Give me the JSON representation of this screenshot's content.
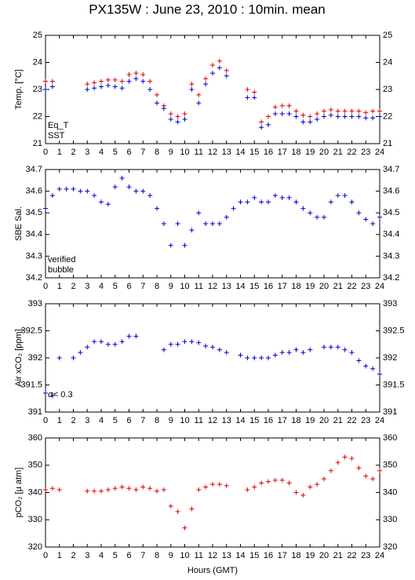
{
  "chart_data": [
    {
      "type": "scatter",
      "title": "PX135W : June 23, 2010 : 10min. mean",
      "ylabel": "Temp. [°C]",
      "x": [
        0,
        0.5,
        1,
        1.5,
        2,
        2.5,
        3,
        3.5,
        4,
        4.5,
        5,
        5.5,
        6,
        6.5,
        7,
        7.5,
        8,
        8.5,
        9,
        9.5,
        10,
        10.5,
        11,
        11.5,
        12,
        12.5,
        13,
        13.5,
        14,
        14.5,
        15,
        15.5,
        16,
        16.5,
        17,
        17.5,
        18,
        18.5,
        19,
        19.5,
        20,
        20.5,
        21,
        21.5,
        22,
        22.5,
        23,
        23.5,
        24
      ],
      "series": [
        {
          "name": "Eq_T",
          "color": "#e00000",
          "values": [
            23.3,
            23.3,
            null,
            null,
            null,
            null,
            23.2,
            23.25,
            23.3,
            23.35,
            23.35,
            23.3,
            23.55,
            23.6,
            23.55,
            23.3,
            22.8,
            22.4,
            22.1,
            22.0,
            22.1,
            23.2,
            22.8,
            23.4,
            23.9,
            24.05,
            23.7,
            null,
            null,
            23.0,
            22.9,
            21.8,
            22.0,
            22.35,
            22.4,
            22.4,
            22.2,
            22.05,
            22.0,
            22.1,
            22.2,
            22.25,
            22.2,
            22.2,
            22.2,
            22.2,
            22.15,
            22.2,
            22.2
          ]
        },
        {
          "name": "SST",
          "color": "#0000d0",
          "values": [
            23.0,
            23.1,
            null,
            null,
            null,
            null,
            23.0,
            23.05,
            23.1,
            23.15,
            23.1,
            23.05,
            23.3,
            23.4,
            23.3,
            23.0,
            22.5,
            22.3,
            21.9,
            21.8,
            21.9,
            23.0,
            22.5,
            23.2,
            23.6,
            23.8,
            23.5,
            null,
            null,
            22.7,
            22.7,
            21.6,
            21.7,
            22.1,
            22.1,
            22.1,
            22.0,
            21.8,
            21.8,
            21.9,
            22.0,
            22.05,
            22.0,
            22.0,
            22.0,
            22.0,
            21.95,
            21.95,
            22.0
          ]
        }
      ],
      "xlim": [
        0,
        24
      ],
      "xticks": [
        0,
        1,
        2,
        3,
        4,
        5,
        6,
        7,
        8,
        9,
        10,
        11,
        12,
        13,
        14,
        15,
        16,
        17,
        18,
        19,
        20,
        21,
        22,
        23,
        24
      ],
      "ylim": [
        21,
        25
      ],
      "yticks": [
        21,
        22,
        23,
        24,
        25
      ]
    },
    {
      "type": "scatter",
      "ylabel": "SBE Sal.",
      "x": [
        0,
        0.5,
        1,
        1.5,
        2,
        2.5,
        3,
        3.5,
        4,
        4.5,
        5,
        5.5,
        6,
        6.5,
        7,
        7.5,
        8,
        8.5,
        9,
        9.5,
        10,
        10.5,
        11,
        11.5,
        12,
        12.5,
        13,
        13.5,
        14,
        14.5,
        15,
        15.5,
        16,
        16.5,
        17,
        17.5,
        18,
        18.5,
        19,
        19.5,
        20,
        20.5,
        21,
        21.5,
        22,
        22.5,
        23,
        23.5,
        24
      ],
      "series": [
        {
          "name": "verified",
          "color": "#0000d0",
          "values": [
            34.52,
            34.58,
            34.61,
            34.61,
            34.61,
            34.6,
            34.6,
            34.58,
            34.55,
            34.54,
            34.62,
            34.66,
            34.62,
            34.6,
            34.6,
            34.58,
            34.52,
            34.45,
            34.35,
            34.45,
            34.35,
            34.42,
            34.5,
            34.45,
            34.45,
            34.45,
            34.48,
            34.52,
            34.55,
            34.55,
            34.57,
            34.55,
            34.55,
            34.58,
            34.57,
            34.57,
            34.55,
            34.52,
            34.5,
            34.48,
            34.48,
            34.55,
            34.58,
            34.58,
            34.55,
            34.5,
            34.47,
            34.45,
            34.48
          ]
        },
        {
          "name": "bubble",
          "color": "#e000e0",
          "values": [
            null,
            null,
            null,
            null,
            null,
            null,
            null,
            null,
            null,
            null,
            null,
            null,
            null,
            null,
            null,
            null,
            null,
            null,
            null,
            null,
            null,
            null,
            null,
            null,
            null,
            null,
            null,
            null,
            null,
            null,
            null,
            null,
            null,
            null,
            null,
            null,
            null,
            null,
            null,
            null,
            null,
            null,
            null,
            null,
            null,
            null,
            null,
            null,
            null
          ]
        }
      ],
      "xlim": [
        0,
        24
      ],
      "xticks": [
        0,
        1,
        2,
        3,
        4,
        5,
        6,
        7,
        8,
        9,
        10,
        11,
        12,
        13,
        14,
        15,
        16,
        17,
        18,
        19,
        20,
        21,
        22,
        23,
        24
      ],
      "ylim": [
        34.2,
        34.7
      ],
      "yticks": [
        34.2,
        34.3,
        34.4,
        34.5,
        34.6,
        34.7
      ]
    },
    {
      "type": "scatter",
      "ylabel": "Air xCO₂ [ppm]",
      "annotation": "σ< 0.3",
      "annotation_color": "#e000e0",
      "x": [
        0,
        0.5,
        1,
        1.5,
        2,
        2.5,
        3,
        3.5,
        4,
        4.5,
        5,
        5.5,
        6,
        6.5,
        7,
        7.5,
        8,
        8.5,
        9,
        9.5,
        10,
        10.5,
        11,
        11.5,
        12,
        12.5,
        13,
        13.5,
        14,
        14.5,
        15,
        15.5,
        16,
        16.5,
        17,
        17.5,
        18,
        18.5,
        19,
        19.5,
        20,
        20.5,
        21,
        21.5,
        22,
        22.5,
        23,
        23.5,
        24
      ],
      "series": [
        {
          "name": null,
          "color": "#0000d0",
          "values": [
            391.35,
            391.3,
            392.0,
            null,
            392.0,
            392.1,
            392.2,
            392.3,
            392.3,
            392.25,
            392.25,
            392.3,
            392.4,
            392.4,
            null,
            null,
            null,
            392.15,
            392.25,
            392.25,
            392.3,
            392.3,
            392.28,
            392.22,
            392.2,
            392.15,
            392.1,
            null,
            392.05,
            392.0,
            392.0,
            392.0,
            392.0,
            392.05,
            392.1,
            392.1,
            392.15,
            392.1,
            392.15,
            null,
            392.2,
            392.2,
            392.2,
            392.15,
            392.1,
            391.95,
            391.85,
            391.8,
            391.7
          ]
        }
      ],
      "xlim": [
        0,
        24
      ],
      "xticks": [
        0,
        1,
        2,
        3,
        4,
        5,
        6,
        7,
        8,
        9,
        10,
        11,
        12,
        13,
        14,
        15,
        16,
        17,
        18,
        19,
        20,
        21,
        22,
        23,
        24
      ],
      "ylim": [
        391,
        393
      ],
      "yticks": [
        391,
        391.5,
        392,
        392.5,
        393
      ]
    },
    {
      "type": "scatter",
      "ylabel": "pCO₂ [µ atm]",
      "xlabel": "Hours (GMT)",
      "x": [
        0,
        0.5,
        1,
        1.5,
        2,
        2.5,
        3,
        3.5,
        4,
        4.5,
        5,
        5.5,
        6,
        6.5,
        7,
        7.5,
        8,
        8.5,
        9,
        9.5,
        10,
        10.5,
        11,
        11.5,
        12,
        12.5,
        13,
        13.5,
        14,
        14.5,
        15,
        15.5,
        16,
        16.5,
        17,
        17.5,
        18,
        18.5,
        19,
        19.5,
        20,
        20.5,
        21,
        21.5,
        22,
        22.5,
        23,
        23.5,
        24
      ],
      "series": [
        {
          "name": null,
          "color": "#e00000",
          "values": [
            341,
            341.5,
            341,
            null,
            null,
            null,
            340.5,
            340.5,
            340.5,
            341,
            341.5,
            342,
            341.5,
            341,
            342,
            341.5,
            340.5,
            341,
            335,
            333,
            327,
            334,
            341,
            342,
            343,
            343,
            342.5,
            null,
            null,
            341,
            342,
            343.5,
            344,
            344.5,
            344.5,
            343.5,
            340,
            339,
            342,
            343,
            345,
            348,
            351,
            353,
            352.5,
            349,
            346,
            345,
            348
          ]
        }
      ],
      "xlim": [
        0,
        24
      ],
      "xticks": [
        0,
        1,
        2,
        3,
        4,
        5,
        6,
        7,
        8,
        9,
        10,
        11,
        12,
        13,
        14,
        15,
        16,
        17,
        18,
        19,
        20,
        21,
        22,
        23,
        24
      ],
      "ylim": [
        320,
        360
      ],
      "yticks": [
        320,
        330,
        340,
        350,
        360
      ]
    }
  ]
}
